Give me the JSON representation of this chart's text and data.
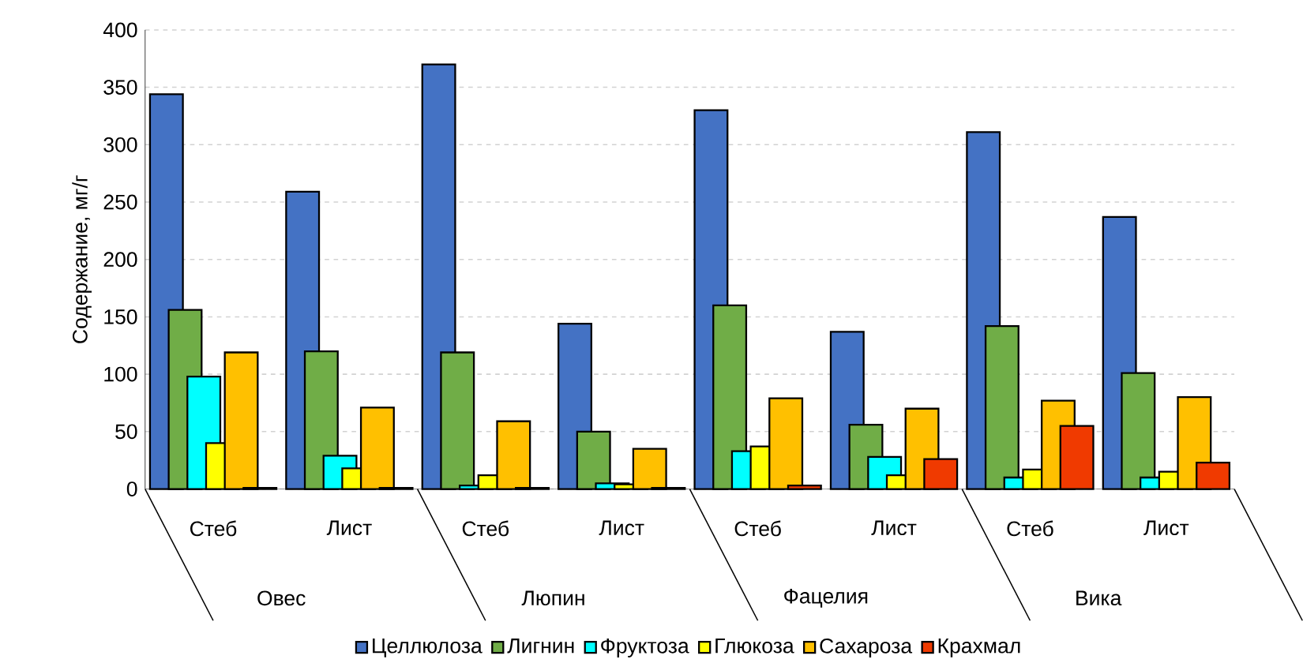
{
  "chart_data": {
    "type": "bar",
    "ylabel": "Содержание, мг/г",
    "categories": [
      "Стеб",
      "Лист",
      "Стеб",
      "Лист",
      "Стеб",
      "Лист",
      "Стеб",
      "Лист"
    ],
    "annotations": [
      "Овес",
      "Люпин",
      "Фацелия",
      "Вика"
    ],
    "series": [
      {
        "name": "Целлюлоза",
        "color": "#4472c4",
        "values": [
          344,
          259,
          370,
          144,
          330,
          137,
          311,
          237
        ]
      },
      {
        "name": "Лигнин",
        "color": "#70ad47",
        "values": [
          156,
          120,
          119,
          50,
          160,
          56,
          142,
          101
        ]
      },
      {
        "name": "Фруктоза",
        "color": "#00ffff",
        "values": [
          98,
          29,
          3,
          5,
          33,
          28,
          10,
          10
        ]
      },
      {
        "name": "Глюкоза",
        "color": "#ffff00",
        "values": [
          40,
          18,
          12,
          4,
          37,
          12,
          17,
          15
        ]
      },
      {
        "name": "Сахароза",
        "color": "#ffc000",
        "values": [
          119,
          71,
          59,
          35,
          79,
          70,
          77,
          80
        ]
      },
      {
        "name": "Крахмал",
        "color": "#f03a00",
        "values": [
          1,
          1,
          1,
          1,
          3,
          26,
          55,
          23
        ]
      }
    ],
    "ylim": [
      0,
      400
    ],
    "yticks": [
      0,
      50,
      100,
      150,
      200,
      250,
      300,
      350,
      400
    ],
    "grid": "y",
    "legend": "bottom"
  }
}
